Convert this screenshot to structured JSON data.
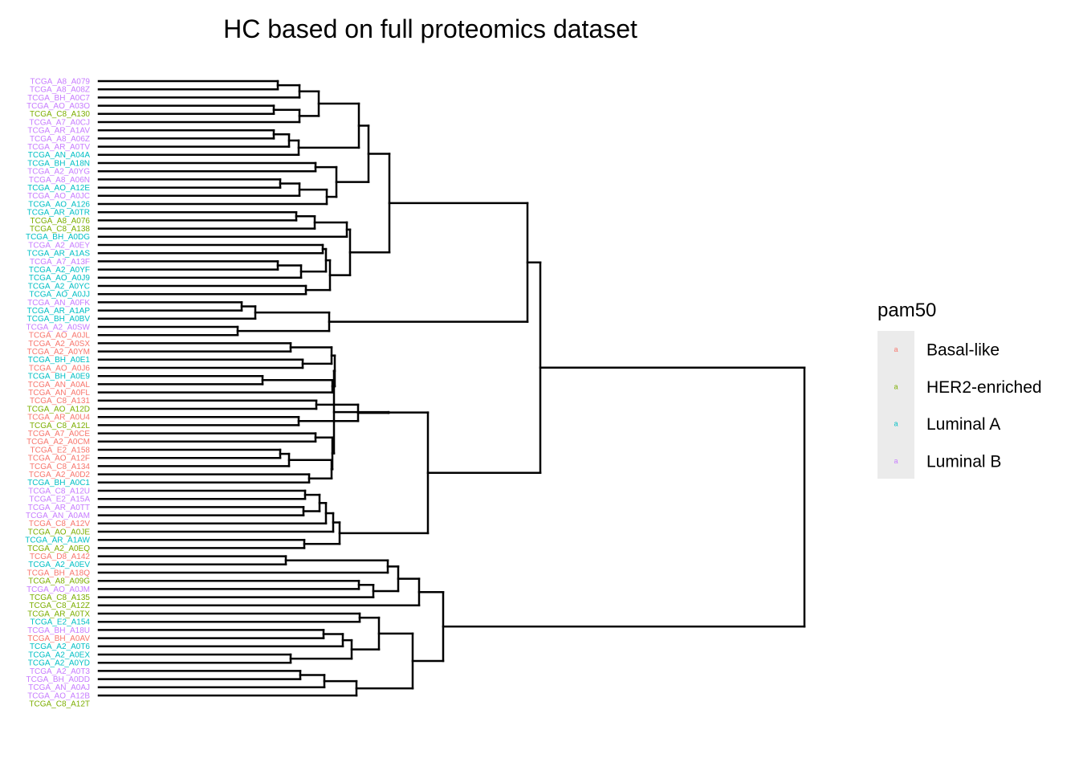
{
  "chart_data": {
    "type": "dendrogram",
    "title": "HC based on full proteomics dataset",
    "legend": {
      "title": "pam50",
      "position": "right",
      "key_glyph": "a",
      "entries": [
        {
          "label": "Basal-like",
          "color": "#F8766D"
        },
        {
          "label": "HER2-enriched",
          "color": "#7CAE00"
        },
        {
          "label": "Luminal A",
          "color": "#00BFC4"
        },
        {
          "label": "Luminal B",
          "color": "#C77CFF"
        }
      ]
    },
    "leaves": [
      {
        "label": "TCGA_A8_A079",
        "class": "Luminal B"
      },
      {
        "label": "TCGA_A8_A08Z",
        "class": "Luminal B"
      },
      {
        "label": "TCGA_BH_A0C7",
        "class": "Luminal B"
      },
      {
        "label": "TCGA_AO_A03O",
        "class": "Luminal B"
      },
      {
        "label": "TCGA_C8_A130",
        "class": "HER2-enriched"
      },
      {
        "label": "TCGA_A7_A0CJ",
        "class": "Luminal B"
      },
      {
        "label": "TCGA_AR_A1AV",
        "class": "Luminal B"
      },
      {
        "label": "TCGA_A8_A06Z",
        "class": "Luminal B"
      },
      {
        "label": "TCGA_AR_A0TV",
        "class": "Luminal B"
      },
      {
        "label": "TCGA_AN_A04A",
        "class": "Luminal A"
      },
      {
        "label": "TCGA_BH_A18N",
        "class": "Luminal A"
      },
      {
        "label": "TCGA_A2_A0YG",
        "class": "Luminal B"
      },
      {
        "label": "TCGA_A8_A06N",
        "class": "Luminal B"
      },
      {
        "label": "TCGA_AO_A12E",
        "class": "Luminal A"
      },
      {
        "label": "TCGA_AO_A0JC",
        "class": "Luminal B"
      },
      {
        "label": "TCGA_AO_A126",
        "class": "Luminal A"
      },
      {
        "label": "TCGA_AR_A0TR",
        "class": "Luminal A"
      },
      {
        "label": "TCGA_A8_A076",
        "class": "HER2-enriched"
      },
      {
        "label": "TCGA_C8_A138",
        "class": "HER2-enriched"
      },
      {
        "label": "TCGA_BH_A0DG",
        "class": "Luminal A"
      },
      {
        "label": "TCGA_A2_A0EY",
        "class": "Luminal B"
      },
      {
        "label": "TCGA_AR_A1AS",
        "class": "Luminal A"
      },
      {
        "label": "TCGA_A7_A13F",
        "class": "Luminal B"
      },
      {
        "label": "TCGA_A2_A0YF",
        "class": "Luminal A"
      },
      {
        "label": "TCGA_AO_A0J9",
        "class": "Luminal A"
      },
      {
        "label": "TCGA_A2_A0YC",
        "class": "Luminal A"
      },
      {
        "label": "TCGA_AO_A0JJ",
        "class": "Luminal A"
      },
      {
        "label": "TCGA_AN_A0FK",
        "class": "Luminal B"
      },
      {
        "label": "TCGA_AR_A1AP",
        "class": "Luminal A"
      },
      {
        "label": "TCGA_BH_A0BV",
        "class": "Luminal A"
      },
      {
        "label": "TCGA_A2_A0SW",
        "class": "Luminal B"
      },
      {
        "label": "TCGA_AO_A0JL",
        "class": "Basal-like"
      },
      {
        "label": "TCGA_A2_A0SX",
        "class": "Basal-like"
      },
      {
        "label": "TCGA_A2_A0YM",
        "class": "Basal-like"
      },
      {
        "label": "TCGA_BH_A0E1",
        "class": "Luminal A"
      },
      {
        "label": "TCGA_AO_A0J6",
        "class": "Basal-like"
      },
      {
        "label": "TCGA_BH_A0E9",
        "class": "Luminal A"
      },
      {
        "label": "TCGA_AN_A0AL",
        "class": "Basal-like"
      },
      {
        "label": "TCGA_AN_A0FL",
        "class": "Basal-like"
      },
      {
        "label": "TCGA_C8_A131",
        "class": "Basal-like"
      },
      {
        "label": "TCGA_AO_A12D",
        "class": "HER2-enriched"
      },
      {
        "label": "TCGA_AR_A0U4",
        "class": "Basal-like"
      },
      {
        "label": "TCGA_C8_A12L",
        "class": "HER2-enriched"
      },
      {
        "label": "TCGA_A7_A0CE",
        "class": "Basal-like"
      },
      {
        "label": "TCGA_A2_A0CM",
        "class": "Basal-like"
      },
      {
        "label": "TCGA_E2_A158",
        "class": "Basal-like"
      },
      {
        "label": "TCGA_AO_A12F",
        "class": "Basal-like"
      },
      {
        "label": "TCGA_C8_A134",
        "class": "Basal-like"
      },
      {
        "label": "TCGA_A2_A0D2",
        "class": "Basal-like"
      },
      {
        "label": "TCGA_BH_A0C1",
        "class": "Luminal A"
      },
      {
        "label": "TCGA_C8_A12U",
        "class": "Luminal B"
      },
      {
        "label": "TCGA_E2_A15A",
        "class": "Luminal B"
      },
      {
        "label": "TCGA_AR_A0TT",
        "class": "Luminal B"
      },
      {
        "label": "TCGA_AN_A0AM",
        "class": "Luminal B"
      },
      {
        "label": "TCGA_C8_A12V",
        "class": "Basal-like"
      },
      {
        "label": "TCGA_AO_A0JE",
        "class": "HER2-enriched"
      },
      {
        "label": "TCGA_AR_A1AW",
        "class": "Luminal A"
      },
      {
        "label": "TCGA_A2_A0EQ",
        "class": "HER2-enriched"
      },
      {
        "label": "TCGA_D8_A142",
        "class": "Basal-like"
      },
      {
        "label": "TCGA_A2_A0EV",
        "class": "Luminal A"
      },
      {
        "label": "TCGA_BH_A18Q",
        "class": "Basal-like"
      },
      {
        "label": "TCGA_A8_A09G",
        "class": "HER2-enriched"
      },
      {
        "label": "TCGA_AO_A0JM",
        "class": "Luminal B"
      },
      {
        "label": "TCGA_C8_A135",
        "class": "HER2-enriched"
      },
      {
        "label": "TCGA_C8_A12Z",
        "class": "HER2-enriched"
      },
      {
        "label": "TCGA_AR_A0TX",
        "class": "HER2-enriched"
      },
      {
        "label": "TCGA_E2_A154",
        "class": "Luminal A"
      },
      {
        "label": "TCGA_BH_A18U",
        "class": "Luminal B"
      },
      {
        "label": "TCGA_BH_A0AV",
        "class": "Basal-like"
      },
      {
        "label": "TCGA_A2_A0T6",
        "class": "Luminal A"
      },
      {
        "label": "TCGA_A2_A0EX",
        "class": "Luminal A"
      },
      {
        "label": "TCGA_A2_A0YD",
        "class": "Luminal A"
      },
      {
        "label": "TCGA_A2_A0T3",
        "class": "Luminal B"
      },
      {
        "label": "TCGA_BH_A0DD",
        "class": "Luminal B"
      },
      {
        "label": "TCGA_AN_A0AJ",
        "class": "Luminal B"
      },
      {
        "label": "TCGA_AO_A12B",
        "class": "Luminal B"
      },
      {
        "label": "TCGA_C8_A12T",
        "class": "HER2-enriched"
      }
    ]
  }
}
